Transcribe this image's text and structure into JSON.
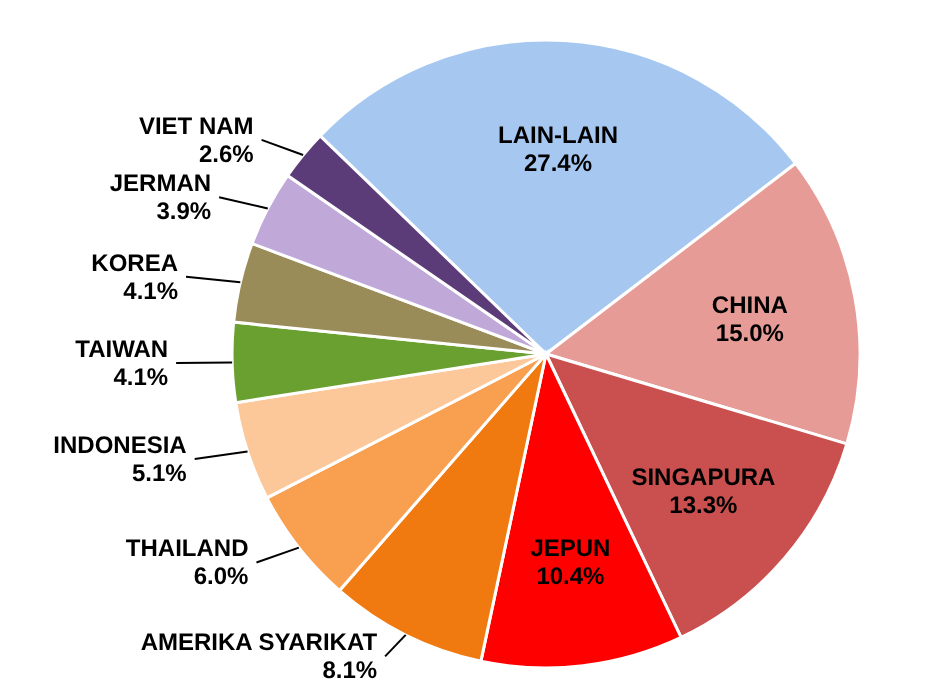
{
  "chart_data": {
    "type": "pie",
    "categories": [
      "LAIN-LAIN",
      "CHINA",
      "SINGAPURA",
      "JEPUN",
      "AMERIKA SYARIKAT",
      "THAILAND",
      "INDONESIA",
      "TAIWAN",
      "KOREA",
      "JERMAN",
      "VIET NAM"
    ],
    "values": [
      27.4,
      15.0,
      13.3,
      10.4,
      8.1,
      6.0,
      5.1,
      4.1,
      4.1,
      3.9,
      2.6
    ],
    "value_labels": [
      "27.4%",
      "15.0%",
      "13.3%",
      "10.4%",
      "8.1%",
      "6.0%",
      "5.1%",
      "4.1%",
      "4.1%",
      "3.9%",
      "2.6%"
    ],
    "colors": [
      "#a6c8f0",
      "#e69b96",
      "#c9504f",
      "#ff0000",
      "#f07a10",
      "#f8a050",
      "#fcc89a",
      "#6aa030",
      "#9a8c58",
      "#c0a8d8",
      "#5c3c78"
    ]
  }
}
